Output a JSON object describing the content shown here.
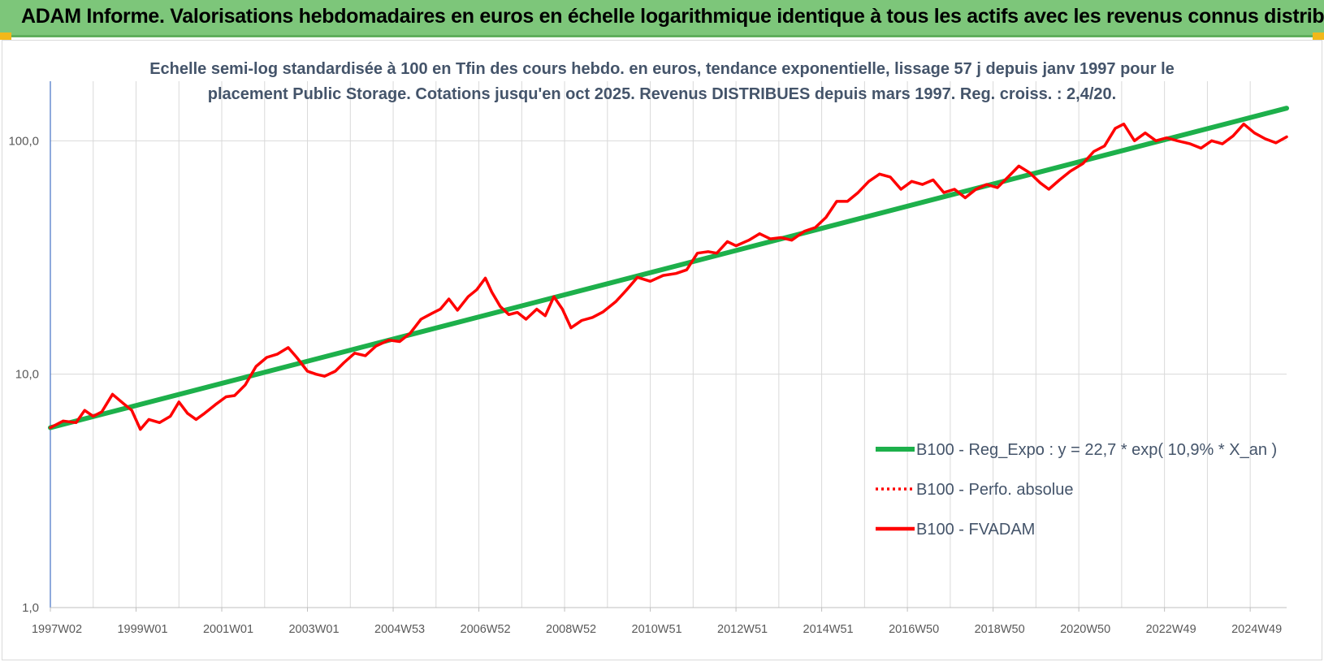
{
  "banner": {
    "title": "ADAM Informe. Valorisations hebdomadaires en euros en échelle logarithmique identique à tous les actifs avec les revenus connus distribués"
  },
  "colors": {
    "banner_bg": "#7dc67a",
    "corner_accent": "#f2b81a",
    "regression_line": "#1db04b",
    "series_line": "#ff0000",
    "grid": "#d9d9d9",
    "axis": "#4472c4"
  },
  "chart_data": {
    "type": "line",
    "title_lines": [
      "Echelle semi-log standardisée à 100 en Tfin des cours hebdo. en euros, tendance exponentielle, lissage 57 j depuis janv 1997 pour le",
      "placement Public Storage. Cotations jusqu'en oct 2025. Revenus DISTRIBUES depuis mars 1997. Reg. croiss. : 2,4/20."
    ],
    "y_scale": "log",
    "ylim": [
      1,
      180
    ],
    "y_ticks": [
      {
        "value": 1,
        "label": "1,0"
      },
      {
        "value": 10,
        "label": "10,0"
      },
      {
        "value": 100,
        "label": "100,0"
      }
    ],
    "x_range_years": [
      1997.0,
      2025.85
    ],
    "x_ticks": [
      {
        "year": 1997.0,
        "label": "1997W02"
      },
      {
        "year": 1999.0,
        "label": "1999W01"
      },
      {
        "year": 2001.0,
        "label": "2001W01"
      },
      {
        "year": 2003.0,
        "label": "2003W01"
      },
      {
        "year": 2005.0,
        "label": "2004W53"
      },
      {
        "year": 2007.0,
        "label": "2006W52"
      },
      {
        "year": 2009.0,
        "label": "2008W52"
      },
      {
        "year": 2011.0,
        "label": "2010W51"
      },
      {
        "year": 2013.0,
        "label": "2012W51"
      },
      {
        "year": 2015.0,
        "label": "2014W51"
      },
      {
        "year": 2017.0,
        "label": "2016W50"
      },
      {
        "year": 2019.0,
        "label": "2018W50"
      },
      {
        "year": 2021.0,
        "label": "2020W50"
      },
      {
        "year": 2023.0,
        "label": "2022W49"
      },
      {
        "year": 2025.0,
        "label": "2024W49"
      }
    ],
    "grid": true,
    "legend_placement": "bottom-right",
    "series": [
      {
        "name": "B100 - Reg_Expo : y = 22,7 * exp( 10,9% *  X_an )",
        "style": "solid-thick",
        "color": "#1db04b",
        "points": [
          [
            1997.0,
            5.9
          ],
          [
            2025.85,
            138
          ]
        ]
      },
      {
        "name": "B100 - Perfo. absolue",
        "style": "dotted",
        "color": "#ff0000",
        "points": []
      },
      {
        "name": "B100 - FVADAM",
        "style": "solid",
        "color": "#ff0000",
        "points": [
          [
            1997.0,
            5.9
          ],
          [
            1997.3,
            6.3
          ],
          [
            1997.6,
            6.2
          ],
          [
            1997.8,
            7.0
          ],
          [
            1998.0,
            6.6
          ],
          [
            1998.2,
            6.9
          ],
          [
            1998.45,
            8.2
          ],
          [
            1998.7,
            7.5
          ],
          [
            1998.9,
            7.0
          ],
          [
            1999.1,
            5.8
          ],
          [
            1999.3,
            6.4
          ],
          [
            1999.55,
            6.2
          ],
          [
            1999.8,
            6.6
          ],
          [
            2000.0,
            7.6
          ],
          [
            2000.2,
            6.8
          ],
          [
            2000.4,
            6.4
          ],
          [
            2000.6,
            6.8
          ],
          [
            2000.85,
            7.4
          ],
          [
            2001.1,
            8.0
          ],
          [
            2001.3,
            8.1
          ],
          [
            2001.55,
            9.0
          ],
          [
            2001.8,
            10.8
          ],
          [
            2002.05,
            11.8
          ],
          [
            2002.3,
            12.2
          ],
          [
            2002.55,
            13.0
          ],
          [
            2002.75,
            11.8
          ],
          [
            2003.0,
            10.3
          ],
          [
            2003.2,
            10.0
          ],
          [
            2003.4,
            9.8
          ],
          [
            2003.65,
            10.3
          ],
          [
            2003.85,
            11.2
          ],
          [
            2004.1,
            12.3
          ],
          [
            2004.35,
            12.0
          ],
          [
            2004.6,
            13.2
          ],
          [
            2004.9,
            14.0
          ],
          [
            2005.15,
            13.8
          ],
          [
            2005.4,
            15.0
          ],
          [
            2005.65,
            17.2
          ],
          [
            2005.9,
            18.2
          ],
          [
            2006.1,
            19.0
          ],
          [
            2006.3,
            21.0
          ],
          [
            2006.5,
            18.8
          ],
          [
            2006.75,
            21.5
          ],
          [
            2006.95,
            23.0
          ],
          [
            2007.15,
            25.8
          ],
          [
            2007.3,
            22.5
          ],
          [
            2007.5,
            19.5
          ],
          [
            2007.7,
            18.0
          ],
          [
            2007.9,
            18.4
          ],
          [
            2008.1,
            17.2
          ],
          [
            2008.35,
            19.0
          ],
          [
            2008.55,
            17.8
          ],
          [
            2008.75,
            21.5
          ],
          [
            2008.95,
            19.0
          ],
          [
            2009.15,
            15.8
          ],
          [
            2009.4,
            17.0
          ],
          [
            2009.65,
            17.5
          ],
          [
            2009.9,
            18.5
          ],
          [
            2010.2,
            20.5
          ],
          [
            2010.45,
            23.0
          ],
          [
            2010.7,
            26.0
          ],
          [
            2011.0,
            25.0
          ],
          [
            2011.3,
            26.5
          ],
          [
            2011.6,
            27.0
          ],
          [
            2011.85,
            28.0
          ],
          [
            2012.1,
            33.0
          ],
          [
            2012.35,
            33.5
          ],
          [
            2012.55,
            33.0
          ],
          [
            2012.8,
            37.0
          ],
          [
            2013.0,
            35.5
          ],
          [
            2013.3,
            37.5
          ],
          [
            2013.55,
            40.0
          ],
          [
            2013.8,
            38.0
          ],
          [
            2014.05,
            38.5
          ],
          [
            2014.3,
            37.5
          ],
          [
            2014.6,
            41.0
          ],
          [
            2014.85,
            42.5
          ],
          [
            2015.1,
            47.0
          ],
          [
            2015.35,
            55.0
          ],
          [
            2015.6,
            55.0
          ],
          [
            2015.85,
            60.0
          ],
          [
            2016.1,
            67.0
          ],
          [
            2016.35,
            72.0
          ],
          [
            2016.6,
            70.0
          ],
          [
            2016.85,
            62.0
          ],
          [
            2017.1,
            67.0
          ],
          [
            2017.35,
            65.0
          ],
          [
            2017.6,
            68.0
          ],
          [
            2017.85,
            60.0
          ],
          [
            2018.1,
            62.0
          ],
          [
            2018.35,
            57.0
          ],
          [
            2018.6,
            62.0
          ],
          [
            2018.85,
            65.0
          ],
          [
            2019.1,
            63.0
          ],
          [
            2019.35,
            70.0
          ],
          [
            2019.6,
            78.0
          ],
          [
            2019.85,
            73.0
          ],
          [
            2020.1,
            66.0
          ],
          [
            2020.3,
            62.0
          ],
          [
            2020.55,
            68.0
          ],
          [
            2020.8,
            74.0
          ],
          [
            2021.1,
            80.0
          ],
          [
            2021.35,
            90.0
          ],
          [
            2021.6,
            95.0
          ],
          [
            2021.85,
            113.0
          ],
          [
            2022.05,
            118.0
          ],
          [
            2022.3,
            100.0
          ],
          [
            2022.55,
            108.0
          ],
          [
            2022.8,
            100.0
          ],
          [
            2023.05,
            103.0
          ],
          [
            2023.3,
            100.0
          ],
          [
            2023.6,
            97.0
          ],
          [
            2023.85,
            93.0
          ],
          [
            2024.1,
            100.0
          ],
          [
            2024.35,
            97.0
          ],
          [
            2024.6,
            105.0
          ],
          [
            2024.85,
            118.0
          ],
          [
            2025.1,
            108.0
          ],
          [
            2025.35,
            102.0
          ],
          [
            2025.6,
            98.0
          ],
          [
            2025.85,
            104.0
          ]
        ]
      }
    ]
  }
}
